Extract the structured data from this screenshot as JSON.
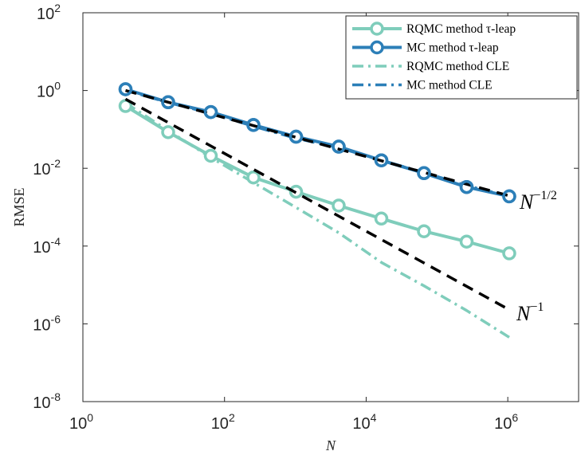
{
  "chart_data": {
    "type": "line",
    "xscale": "log",
    "yscale": "log",
    "xlim": [
      1,
      10000000
    ],
    "ylim": [
      1e-08,
      100
    ],
    "xticks": [
      {
        "base": "10",
        "exp": "0",
        "value": 1
      },
      {
        "base": "10",
        "exp": "2",
        "value": 100
      },
      {
        "base": "10",
        "exp": "4",
        "value": 10000
      },
      {
        "base": "10",
        "exp": "6",
        "value": 1000000
      }
    ],
    "yticks": [
      {
        "base": "10",
        "exp": "2",
        "value": 100
      },
      {
        "base": "10",
        "exp": "0",
        "value": 1
      },
      {
        "base": "10",
        "exp": "-2",
        "value": 0.01
      },
      {
        "base": "10",
        "exp": "-4",
        "value": 0.0001
      },
      {
        "base": "10",
        "exp": "-6",
        "value": 1e-06
      },
      {
        "base": "10",
        "exp": "-8",
        "value": 1e-08
      }
    ],
    "xlabel": "N",
    "ylabel": "RMSE",
    "legend_position": "top-right",
    "x": [
      4,
      16,
      64,
      256,
      1024,
      4096,
      16384,
      65536,
      262144,
      1048576
    ],
    "series": [
      {
        "name": "RQMC method τ-leap",
        "color": "#7fcdbb",
        "style": "solid-circle",
        "values": [
          0.4,
          0.085,
          0.021,
          0.0058,
          0.0025,
          0.0011,
          0.00051,
          0.00024,
          0.00013,
          6.5e-05
        ]
      },
      {
        "name": "MC method τ-leap",
        "color": "#2c7fb8",
        "style": "solid-circle",
        "values": [
          1.08,
          0.5,
          0.28,
          0.13,
          0.065,
          0.036,
          0.016,
          0.0075,
          0.0033,
          0.0019
        ]
      },
      {
        "name": "RQMC method CLE",
        "color": "#7fcdbb",
        "style": "dashdot",
        "values": [
          0.48,
          0.093,
          0.019,
          0.0043,
          0.00098,
          0.00022,
          3.8e-05,
          9.5e-06,
          2.2e-06,
          4.5e-07
        ]
      },
      {
        "name": "MC method CLE",
        "color": "#2c7fb8",
        "style": "dashdot",
        "values": [
          1.02,
          0.49,
          0.26,
          0.12,
          0.059,
          0.034,
          0.016,
          0.0078,
          0.0036,
          0.0019
        ]
      }
    ],
    "reference_lines": [
      {
        "label_base": "N",
        "label_exp": "−1/2",
        "color": "#000000",
        "x": [
          4,
          1048576
        ],
        "values": [
          1.0,
          0.00195
        ]
      },
      {
        "label_base": "N",
        "label_exp": "−1",
        "color": "#000000",
        "x": [
          4,
          1048576
        ],
        "values": [
          0.6,
          2.3e-06
        ]
      }
    ]
  }
}
